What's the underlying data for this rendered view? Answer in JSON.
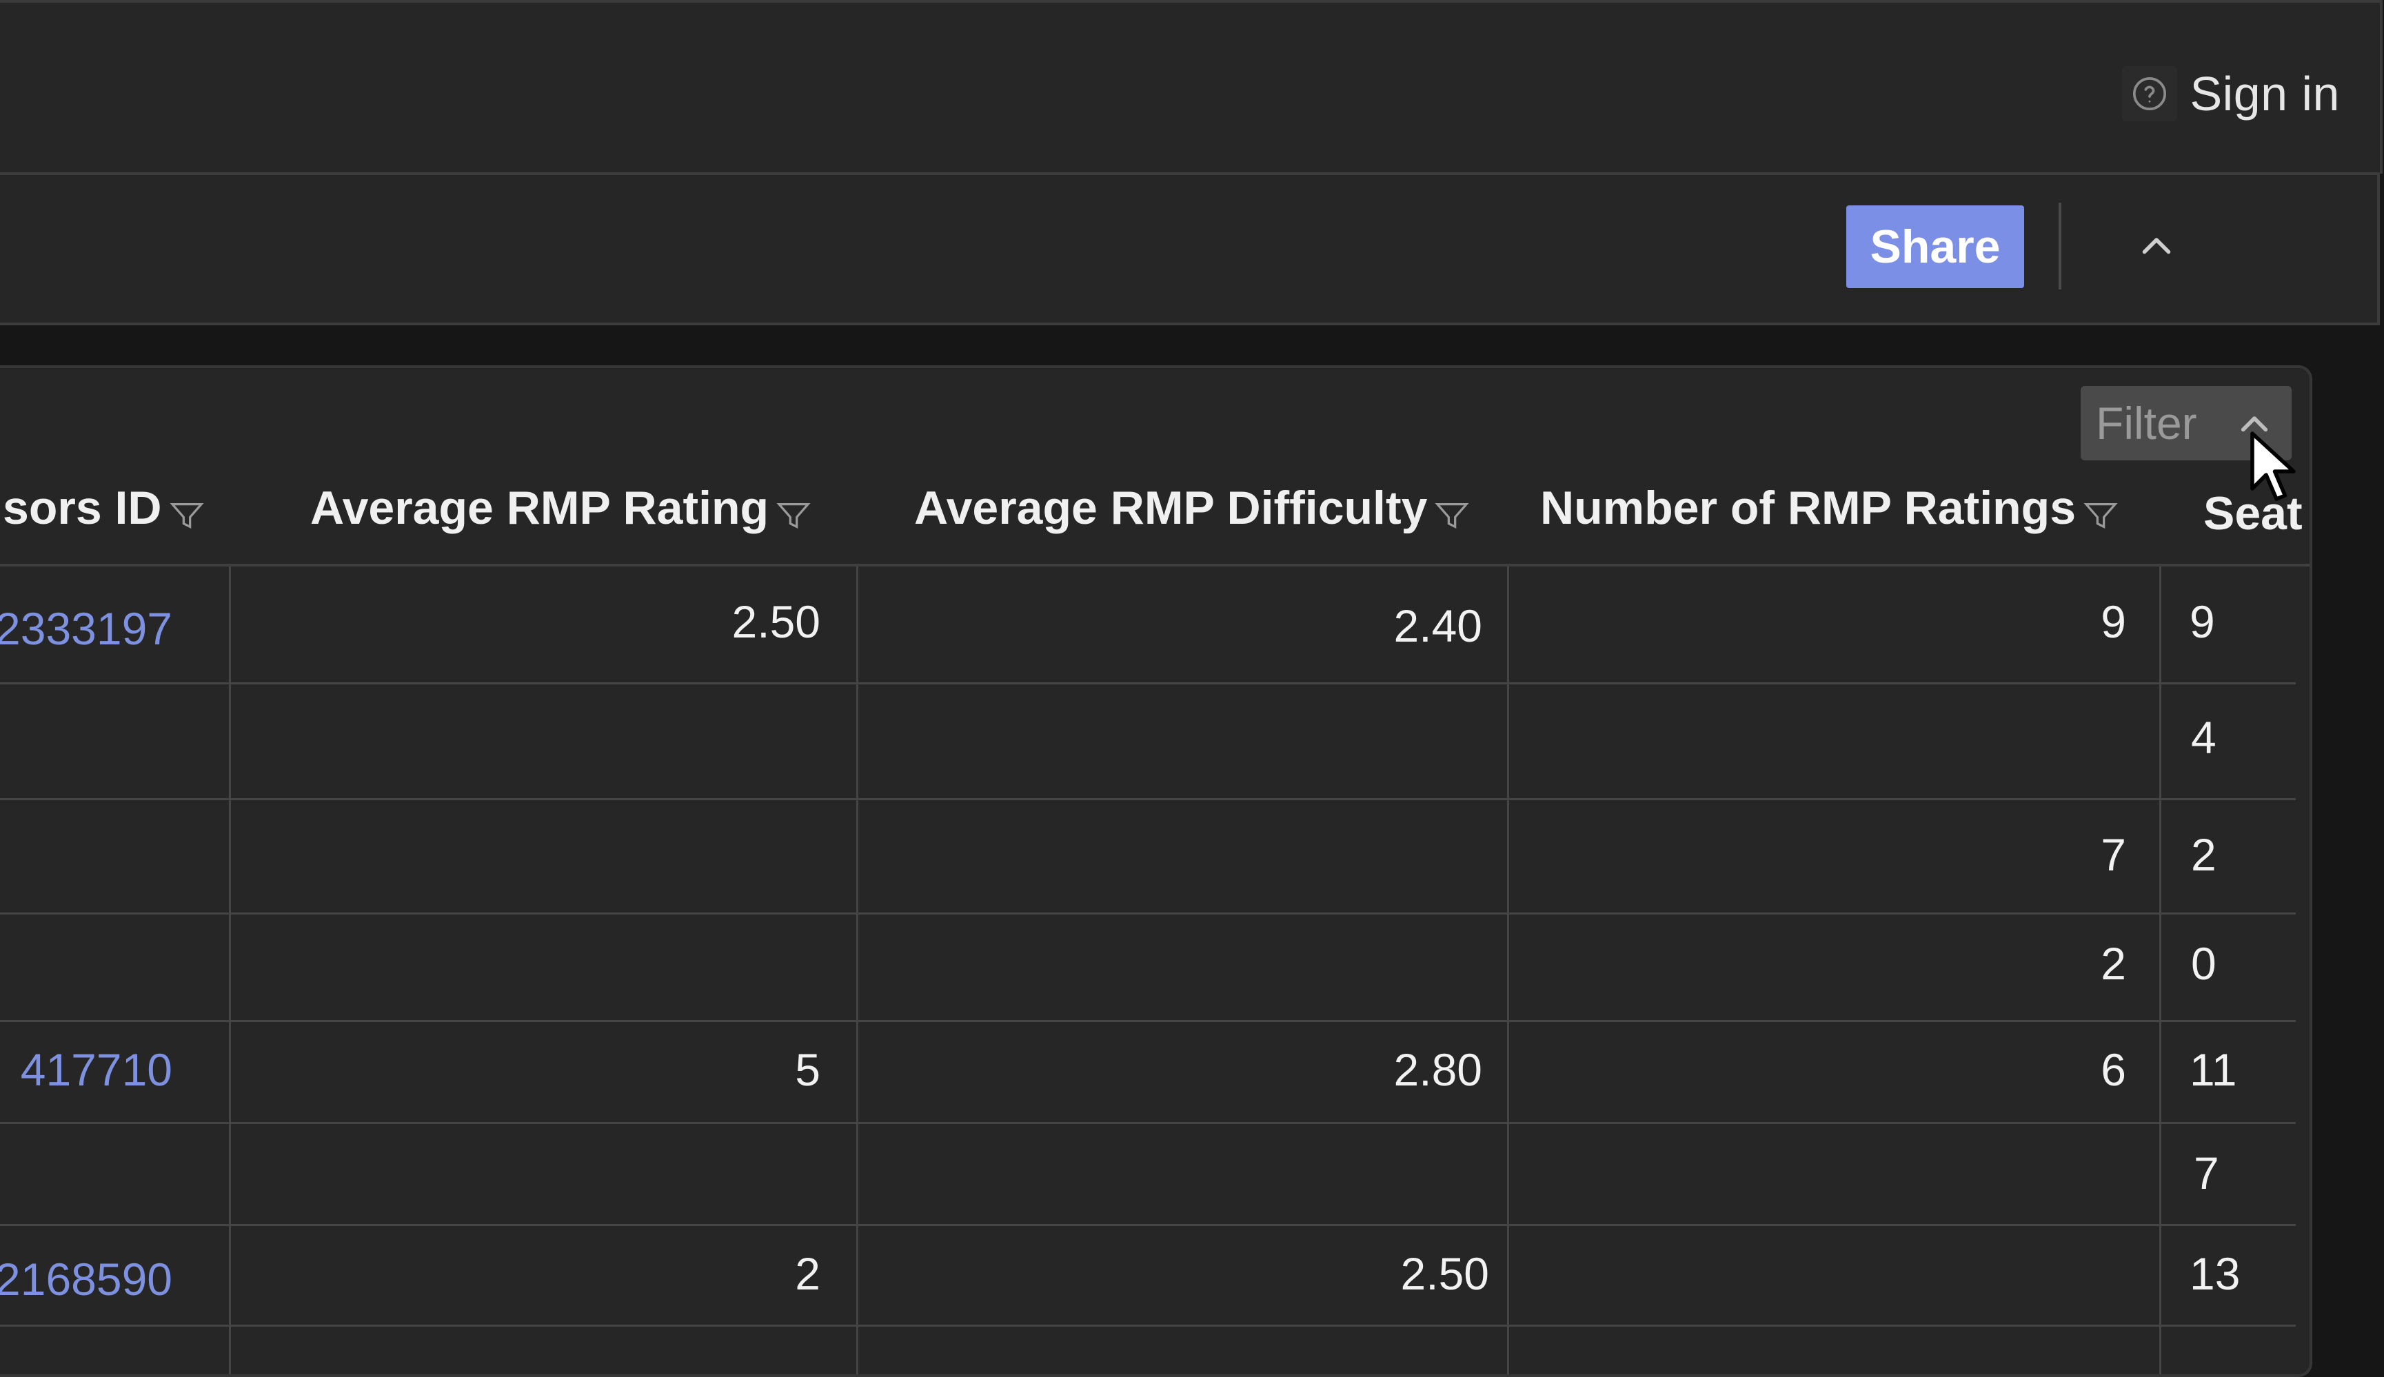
{
  "header": {
    "sign_in_label": "Sign in",
    "help_icon": "question-circle-icon"
  },
  "toolbar": {
    "share_label": "Share",
    "collapse_icon": "chevron-up-icon",
    "share_color": "#7c8fe6"
  },
  "table_panel": {
    "filter_label": "Filter",
    "filter_icon": "chevron-up-icon",
    "columns": [
      "sors ID",
      "Average RMP Rating",
      "Average RMP Difficulty",
      "Number of RMP Ratings",
      "Seat"
    ],
    "filter_column_icon": "funnel-icon",
    "rows": [
      {
        "id": "2333197",
        "rating": "2.50",
        "difficulty": "2.40",
        "num_ratings": "9",
        "seats": "9"
      },
      {
        "id": "",
        "rating": "",
        "difficulty": "",
        "num_ratings": "",
        "seats": "4"
      },
      {
        "id": "",
        "rating": "",
        "difficulty": "",
        "num_ratings": "7",
        "seats": "2"
      },
      {
        "id": "",
        "rating": "",
        "difficulty": "",
        "num_ratings": "2",
        "seats": "0"
      },
      {
        "id": "417710",
        "rating": "5",
        "difficulty": "2.80",
        "num_ratings": "6",
        "seats": "11"
      },
      {
        "id": "",
        "rating": "",
        "difficulty": "",
        "num_ratings": "",
        "seats": "7"
      },
      {
        "id": "2168590",
        "rating": "2",
        "difficulty": "2.50",
        "num_ratings": "",
        "seats": "13"
      }
    ],
    "link_color": "#7e90e0"
  }
}
